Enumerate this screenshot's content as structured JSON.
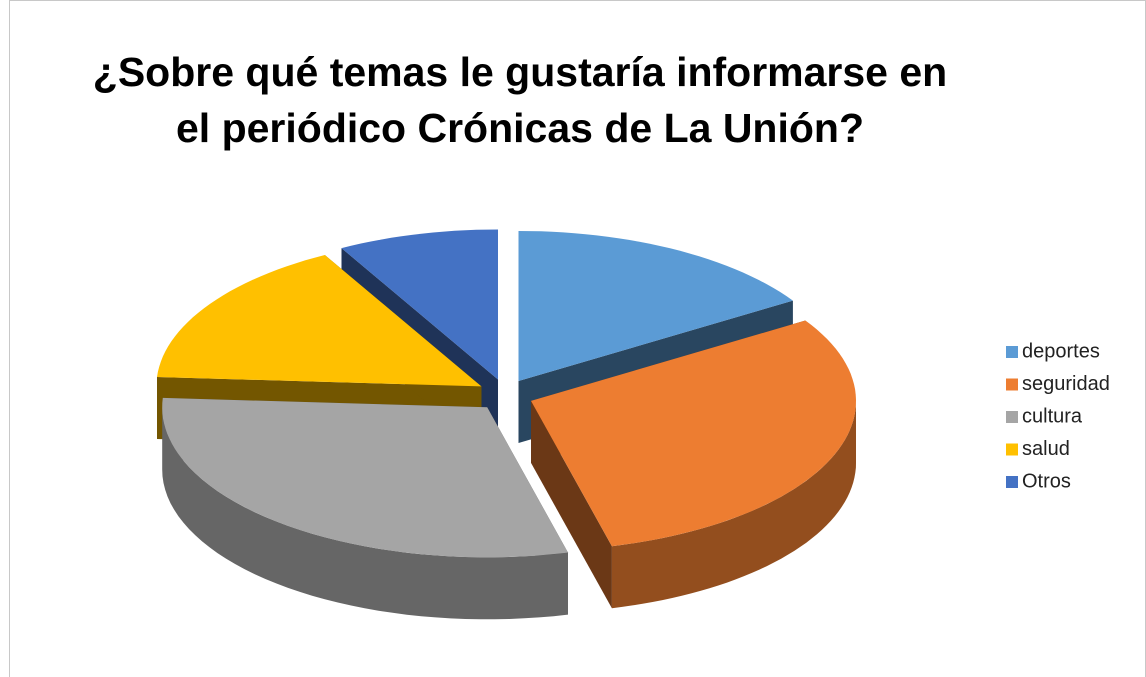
{
  "chart_data": {
    "type": "pie",
    "title": [
      "¿Sobre qué temas le gustaría informarse en",
      "el periódico Crónicas de La Unión?"
    ],
    "categories": [
      "deportes",
      "seguridad",
      "cultura",
      "salud",
      "Otros"
    ],
    "values": [
      16,
      30,
      30,
      16,
      8
    ],
    "colors": [
      "#5b9bd5",
      "#ed7d31",
      "#a5a5a5",
      "#ffc000",
      "#4472c4"
    ],
    "legend": "right"
  }
}
